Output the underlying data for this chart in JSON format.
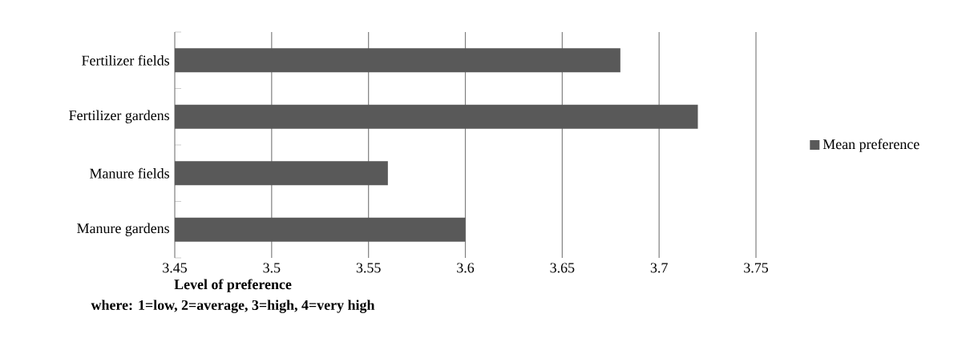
{
  "chart_data": {
    "type": "bar",
    "orientation": "horizontal",
    "xlabel": "Level of preference",
    "annotations": [
      "where: 1=low, 2=average, 3=high, 4=very high"
    ],
    "categories": [
      "Fertilizer fields",
      "Fertilizer gardens",
      "Manure fields",
      "Manure gardens"
    ],
    "series": [
      {
        "name": "Mean preference",
        "color": "#595959",
        "values": [
          3.68,
          3.72,
          3.56,
          3.6
        ]
      }
    ],
    "xlim": [
      3.45,
      3.75
    ],
    "xticks": [
      3.45,
      3.5,
      3.55,
      3.6,
      3.65,
      3.7,
      3.75
    ],
    "grid": "x",
    "legend": "right"
  }
}
